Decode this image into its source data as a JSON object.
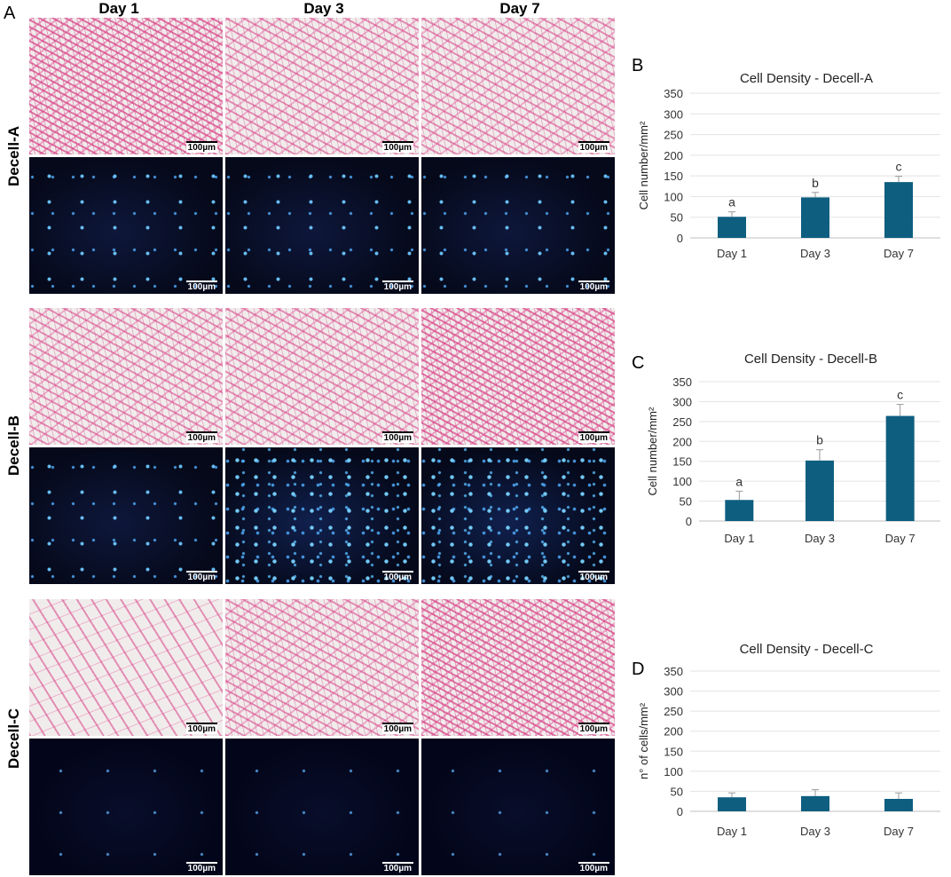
{
  "panel_a": {
    "letter": "A",
    "columns": [
      "Day 1",
      "Day 3",
      "Day 7"
    ],
    "rows": [
      "Decell-A",
      "Decell-B",
      "Decell-C"
    ],
    "scale_bar": "100µm"
  },
  "chart_data": [
    {
      "panel": "B",
      "type": "bar",
      "title": "Cell Density - Decell-A",
      "ylabel": "Cell number/mm²",
      "categories": [
        "Day 1",
        "Day 3",
        "Day 7"
      ],
      "values": [
        51,
        98,
        135
      ],
      "errors": [
        12,
        12,
        14
      ],
      "annotations": [
        "a",
        "b",
        "c"
      ],
      "yticks": [
        0,
        50,
        100,
        150,
        200,
        250,
        300,
        350
      ],
      "ylim": [
        0,
        350
      ],
      "bar_color": "#0e5e80",
      "grid": true
    },
    {
      "panel": "C",
      "type": "bar",
      "title": "Cell Density - Decell-B",
      "ylabel": "Cell number/mm²",
      "categories": [
        "Day 1",
        "Day 3",
        "Day 7"
      ],
      "values": [
        53,
        152,
        264
      ],
      "errors": [
        22,
        27,
        29
      ],
      "annotations": [
        "a",
        "b",
        "c"
      ],
      "yticks": [
        0,
        50,
        100,
        150,
        200,
        250,
        300,
        350
      ],
      "ylim": [
        0,
        350
      ],
      "bar_color": "#0e5e80",
      "grid": true
    },
    {
      "panel": "D",
      "type": "bar",
      "title": "Cell Density - Decell-C",
      "ylabel": "n° of cells/mm²",
      "categories": [
        "Day 1",
        "Day 3",
        "Day 7"
      ],
      "values": [
        35,
        38,
        31
      ],
      "errors": [
        11,
        16,
        15
      ],
      "annotations": [
        "",
        "",
        ""
      ],
      "yticks": [
        0,
        50,
        100,
        150,
        200,
        250,
        300,
        350
      ],
      "ylim": [
        0,
        350
      ],
      "bar_color": "#0e5e80",
      "grid": true
    }
  ]
}
